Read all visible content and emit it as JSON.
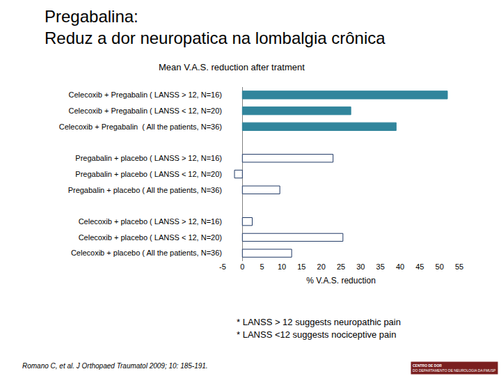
{
  "chart_data": {
    "type": "bar",
    "orientation": "horizontal",
    "title": "Pregabalina:",
    "subtitle": "Reduz a dor neuropatica na lombalgia crônica",
    "annotations": [
      "Mean V.A.S. reduction after tratment",
      "* LANSS > 12 suggests neuropathic pain",
      "* LANSS <12 suggests nociceptive pain",
      "Romano C, et al. J Orthopaed Traumatol 2009; 10: 185-191.",
      "CENTRO DE DOR",
      "DO DEPARTAMENTO DE NEUROLOGIA DA FMUSP"
    ],
    "x_label": "% V.A.S. reduction",
    "categories": [
      "Celecoxib + Pregabalin ( LANSS > 12, N=16)",
      "Celecoxib + Pregabalin ( LANSS < 12, N=20)",
      "Celecoxib + Pregabalin  ( All the patients, N=36)",
      null,
      "Pregabalin + placebo ( LANSS > 12, N=16)",
      "Pregabalin + placebo ( LANSS < 12, N=20)",
      "Pregabalin + placebo ( All the patients, N=36)",
      null,
      "Celecoxib + placebo ( LANSS > 12, N=16)",
      "Celecoxib + placebo ( LANSS < 12, N=20)",
      "Celecoxib + placebo ( All the patients, N=36)"
    ],
    "values": [
      52,
      27.5,
      39,
      null,
      23,
      -2,
      9.5,
      null,
      2.5,
      25.5,
      12.5
    ],
    "colors": [
      "#31859c",
      "#31859c",
      "#31859c",
      null,
      "#ffffff",
      "#ffffff",
      "#ffffff",
      null,
      "#ffffff",
      "#ffffff",
      "#ffffff"
    ],
    "xlim": [
      -5,
      55
    ],
    "xticks": [
      -5,
      0,
      5,
      10,
      15,
      20,
      25,
      30,
      35,
      40,
      45,
      50,
      55
    ],
    "grid": false,
    "tick_labels": true
  }
}
